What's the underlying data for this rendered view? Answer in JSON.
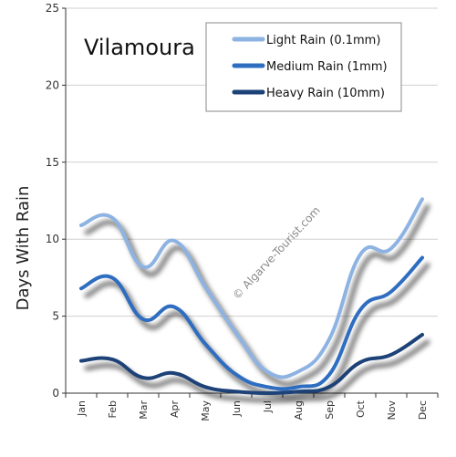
{
  "chart_data": {
    "type": "line",
    "title": "Vilamoura",
    "ylabel": "Days With Rain",
    "xlabel": "",
    "categories": [
      "Jan",
      "Feb",
      "Mar",
      "Apr",
      "May",
      "Jun",
      "Jul",
      "Aug",
      "Sep",
      "Oct",
      "Nov",
      "Dec"
    ],
    "ylim": [
      0,
      25
    ],
    "yticks": [
      0,
      5,
      10,
      15,
      20,
      25
    ],
    "grid": "horizontal",
    "legend_position": "top-right",
    "series": [
      {
        "name": "Light Rain (0.1mm)",
        "color": "#8db3e2",
        "values": [
          10.9,
          11.4,
          8.2,
          9.9,
          6.9,
          3.9,
          1.4,
          1.4,
          3.5,
          9.0,
          9.4,
          12.6
        ]
      },
      {
        "name": "Medium Rain (1mm)",
        "color": "#2e6dc0",
        "values": [
          6.8,
          7.5,
          4.8,
          5.6,
          3.2,
          1.2,
          0.4,
          0.4,
          1.2,
          5.4,
          6.6,
          8.8
        ]
      },
      {
        "name": "Heavy Rain (10mm)",
        "color": "#1d4278",
        "values": [
          2.1,
          2.2,
          1.0,
          1.3,
          0.4,
          0.1,
          0.0,
          0.1,
          0.4,
          2.0,
          2.5,
          3.8
        ]
      }
    ]
  },
  "watermark": "© Algarve-Tourist.com"
}
